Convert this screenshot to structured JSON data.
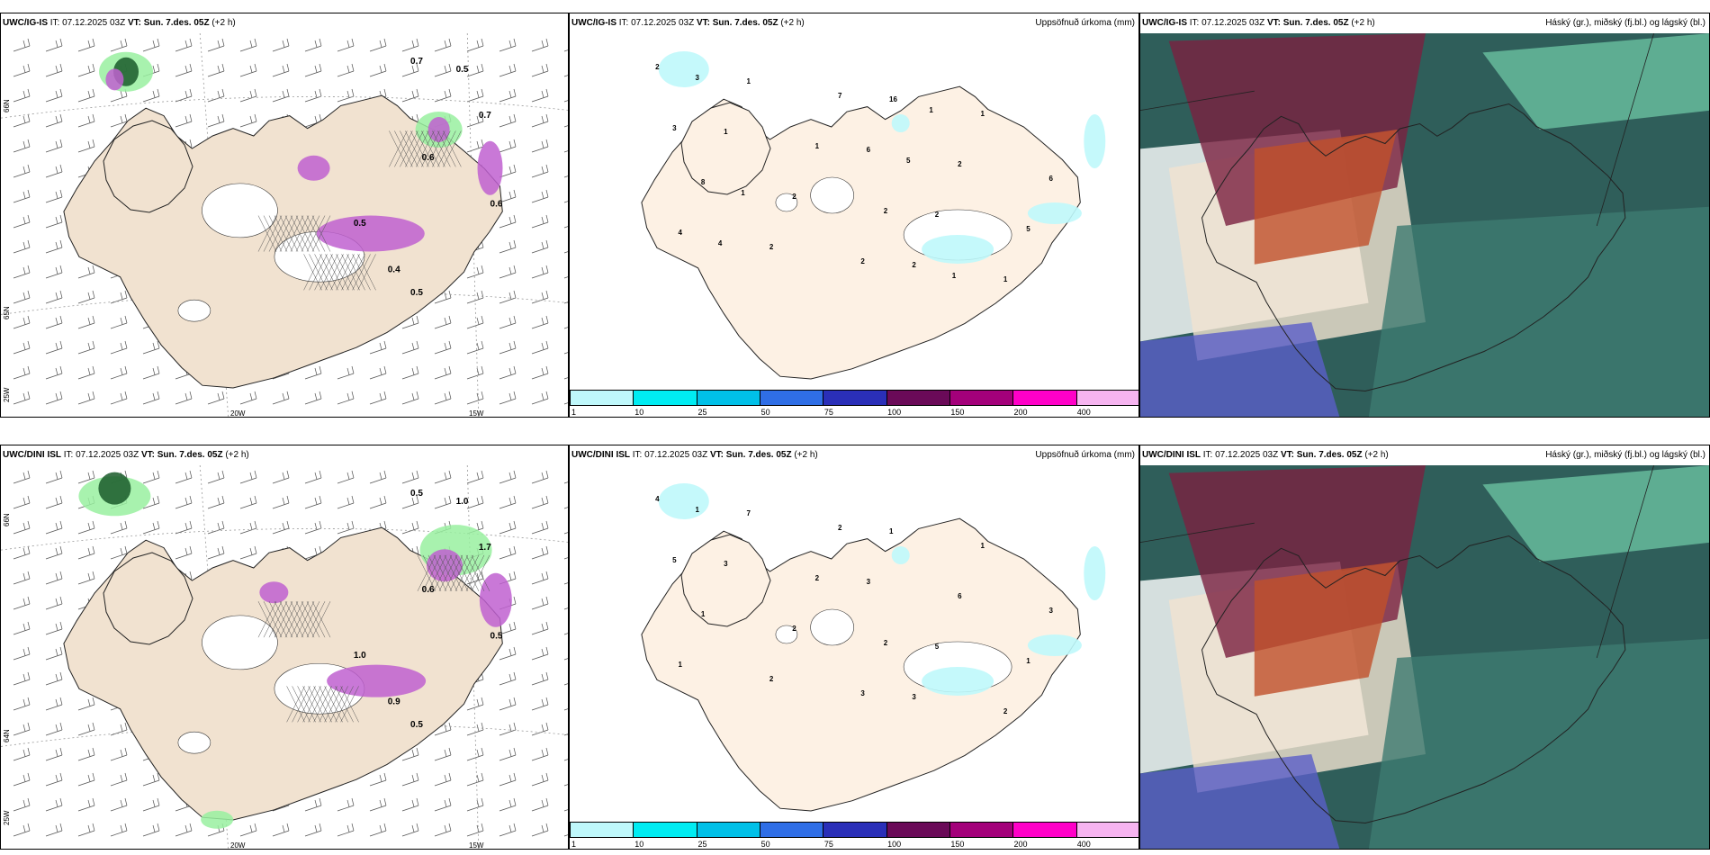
{
  "rows": [
    {
      "model": "UWC/IG-IS",
      "panels": [
        {
          "model": "UWC/IG-IS",
          "it_label": "IT:",
          "it": "07.12.2025 03Z",
          "vt_label": "VT:",
          "vt": "Sun. 7.des. 05Z",
          "offset": "(+2 h)",
          "right_title": ""
        },
        {
          "model": "UWC/IG-IS",
          "it_label": "IT:",
          "it": "07.12.2025 03Z",
          "vt_label": "VT:",
          "vt": "Sun. 7.des. 05Z",
          "offset": "(+2 h)",
          "right_title": "Uppsöfnuð úrkoma (mm)"
        },
        {
          "model": "UWC/IG-IS",
          "it_label": "IT:",
          "it": "07.12.2025 03Z",
          "vt_label": "VT:",
          "vt": "Sun. 7.des. 05Z",
          "offset": "(+2 h)",
          "right_title": "Háský (gr.), miðský (fj.bl.) og lágský (bl.)"
        }
      ],
      "precip_labels": [
        "2",
        "6",
        "4",
        "16",
        "8",
        "2",
        "1",
        "2",
        "1",
        "2",
        "2",
        "1",
        "2",
        "1",
        "1",
        "5",
        "7",
        "6",
        "2",
        "3",
        "2",
        "3",
        "5",
        "4",
        "1",
        "1",
        "1"
      ],
      "wind_labels": [
        "0.7",
        "0.5",
        "0.5",
        "0.4",
        "0.5",
        "0.7",
        "0.6",
        "0.6"
      ]
    },
    {
      "model": "UWC/DINI ISL",
      "panels": [
        {
          "model": "UWC/DINI ISL",
          "it_label": "IT:",
          "it": "07.12.2025 03Z",
          "vt_label": "VT:",
          "vt": "Sun. 7.des. 05Z",
          "offset": "(+2 h)",
          "right_title": ""
        },
        {
          "model": "UWC/DINI ISL",
          "it_label": "IT:",
          "it": "07.12.2025 03Z",
          "vt_label": "VT:",
          "vt": "Sun. 7.des. 05Z",
          "offset": "(+2 h)",
          "right_title": "Uppsöfnuð úrkoma (mm)"
        },
        {
          "model": "UWC/DINI ISL",
          "it_label": "IT:",
          "it": "07.12.2025 03Z",
          "vt_label": "VT:",
          "vt": "Sun. 7.des. 05Z",
          "offset": "(+2 h)",
          "right_title": "Háský (gr.), miðský (fj.bl.) og lágský (bl.)"
        }
      ],
      "precip_labels": [
        "4",
        "3",
        "1",
        "1",
        "1",
        "3",
        "3",
        "5",
        "7",
        "6",
        "2",
        "1",
        "2",
        "2",
        "2",
        "1",
        "2",
        "3",
        "3",
        "5",
        "2",
        "1"
      ],
      "wind_labels": [
        "0.5",
        "1.0",
        "1.0",
        "0.9",
        "0.5",
        "1.7",
        "0.5",
        "0.6"
      ]
    }
  ],
  "axes": {
    "lat_labels": [
      "66N",
      "64N",
      "65N",
      "25W"
    ],
    "lon_labels": [
      "20W",
      "15W"
    ]
  },
  "colorbar": {
    "colors": [
      "#bff8fb",
      "#00ecf2",
      "#00c0e8",
      "#2f6ee6",
      "#2a2fb8",
      "#6a0a58",
      "#a3007a",
      "#ff00c8",
      "#f6b4f0"
    ],
    "ticks": [
      "1",
      "10",
      "25",
      "50",
      "75",
      "100",
      "150",
      "200",
      "400"
    ]
  },
  "colors": {
    "land": "#f1e2d0",
    "land_precip": "#fdf1e4",
    "snow": "#ffffff",
    "green_precip": "#99f0a0",
    "dark_green": "#1a5a2a",
    "magenta": "#c060d0",
    "cyan_precip": "#bff8fb"
  }
}
